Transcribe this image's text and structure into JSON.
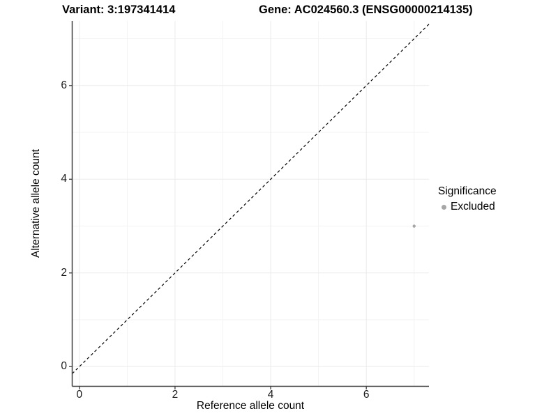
{
  "header": {
    "variant_title": "Variant: 3:197341414",
    "gene_title": "Gene: AC024560.3 (ENSG00000214135)"
  },
  "chart_data": {
    "type": "scatter",
    "title": "Variant: 3:197341414  /  Gene: AC024560.3 (ENSG00000214135)",
    "xlabel": "Reference allele count",
    "ylabel": "Alternative allele count",
    "xlim": [
      -0.15,
      7.31
    ],
    "ylim": [
      -0.42,
      7.38
    ],
    "x_ticks": [
      0,
      2,
      4,
      6
    ],
    "y_ticks": [
      0,
      2,
      4,
      6
    ],
    "x_minor_gridlines": [
      1,
      3,
      5,
      7
    ],
    "y_minor_gridlines": [
      1,
      3,
      5,
      7
    ],
    "grid": true,
    "series": [
      {
        "name": "Excluded",
        "points": [
          {
            "x": 7,
            "y": 3
          }
        ],
        "color": "#a6a6a6"
      }
    ],
    "identity_line": {
      "equation": "y = x",
      "style": "dashed",
      "color": "#000000"
    },
    "legend": {
      "title": "Significance",
      "position": "right",
      "items": [
        {
          "label": "Excluded",
          "color": "#a6a6a6"
        }
      ]
    },
    "colors": {
      "axis_line": "#3c3c3c",
      "grid_major": "#ebebeb",
      "grid_minor": "#f3f3f3",
      "point": "#a6a6a6",
      "background": "#ffffff"
    }
  }
}
